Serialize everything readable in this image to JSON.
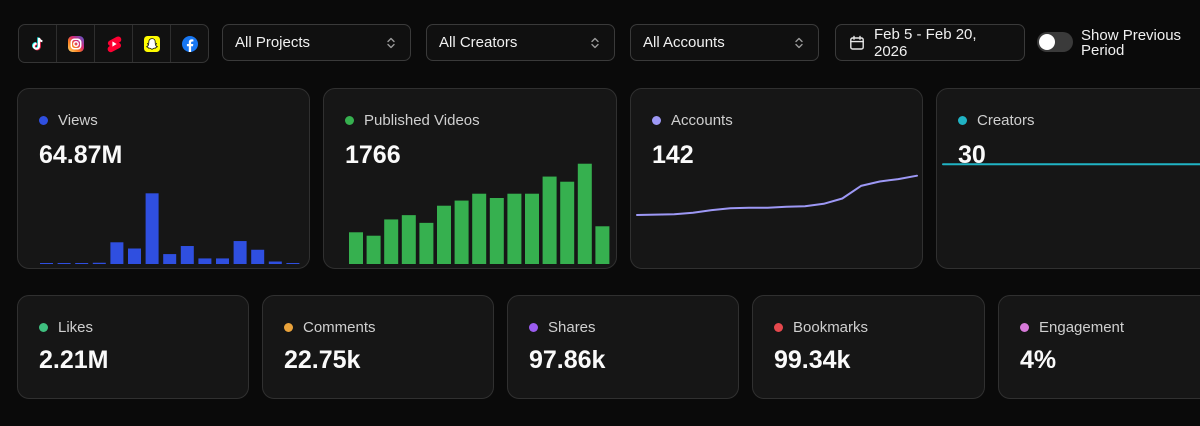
{
  "toolbar": {
    "platforms": [
      {
        "name": "tiktok-icon"
      },
      {
        "name": "instagram-icon"
      },
      {
        "name": "youtube-shorts-icon"
      },
      {
        "name": "snapchat-icon"
      },
      {
        "name": "facebook-icon"
      }
    ],
    "projects_select": {
      "value": "All Projects"
    },
    "creators_select": {
      "value": "All Creators"
    },
    "accounts_select": {
      "value": "All Accounts"
    },
    "date_range": "Feb 5 - Feb 20, 2026",
    "show_previous_period": {
      "label": "Show Previous Period",
      "enabled": false
    }
  },
  "metrics": {
    "views": {
      "label": "Views",
      "value": "64.87M",
      "color": "#2f4fe0"
    },
    "published_videos": {
      "label": "Published Videos",
      "value": "1766",
      "color": "#36b04f"
    },
    "accounts": {
      "label": "Accounts",
      "value": "142",
      "color": "#9d98f5"
    },
    "creators": {
      "label": "Creators",
      "value": "30",
      "color": "#20b3c4"
    },
    "likes": {
      "label": "Likes",
      "value": "2.21M",
      "color": "#3fbf7f"
    },
    "comments": {
      "label": "Comments",
      "value": "22.75k",
      "color": "#e9a23b"
    },
    "shares": {
      "label": "Shares",
      "value": "97.86k",
      "color": "#9b5cf0"
    },
    "bookmarks": {
      "label": "Bookmarks",
      "value": "99.34k",
      "color": "#e5484d"
    },
    "engagement": {
      "label": "Engagement",
      "value": "4%",
      "color": "#d77ad9"
    }
  },
  "chart_data": [
    {
      "type": "bar",
      "series": [
        {
          "values": [
            0.1,
            0.1,
            0.1,
            0.2,
            3.5,
            2.5,
            11.4,
            1.6,
            2.9,
            0.9,
            0.9,
            3.7,
            2.3,
            0.4,
            0.1
          ]
        }
      ],
      "ylim": [
        0,
        20
      ]
    },
    {
      "type": "bar",
      "series": [
        {
          "values": [
            37,
            33,
            52,
            57,
            48,
            68,
            74,
            82,
            77,
            82,
            82,
            102,
            96,
            117,
            44
          ]
        }
      ],
      "ylim": [
        0,
        140
      ]
    },
    {
      "type": "line",
      "series": [
        {
          "values": [
            30,
            30.3,
            30.5,
            31.8,
            33.8,
            35.2,
            35.6,
            35.6,
            36.3,
            36.7,
            38.6,
            42.7,
            52.4,
            55.8,
            57.6,
            60.2
          ]
        }
      ],
      "ylim": [
        0,
        100
      ]
    },
    {
      "type": "line",
      "series": [
        {
          "values": [
            30,
            30
          ]
        }
      ],
      "ylim": [
        0,
        50
      ]
    }
  ]
}
